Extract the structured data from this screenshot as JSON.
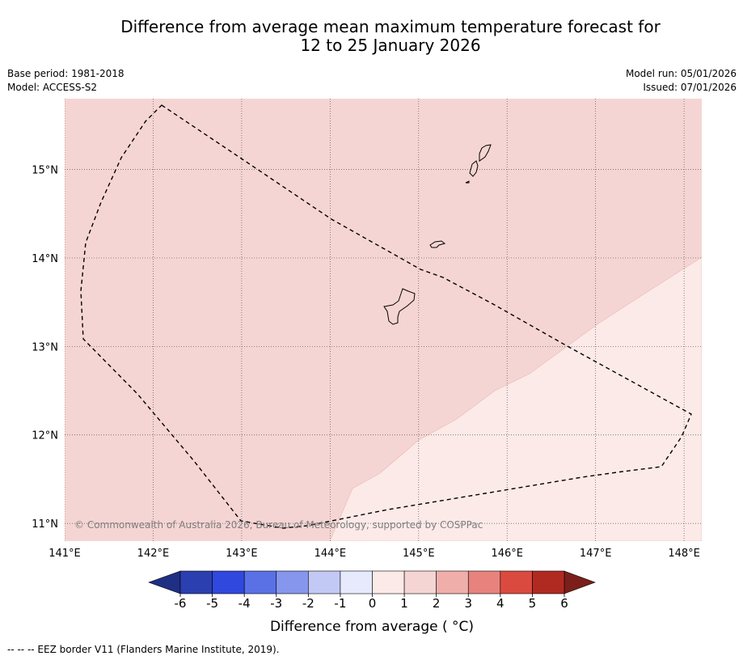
{
  "title": {
    "line1": "Difference from average mean maximum temperature forecast for",
    "line2": "12 to 25 January 2026"
  },
  "meta_left": {
    "base_period": "Base period: 1981-2018",
    "model": "Model: ACCESS-S2"
  },
  "meta_right": {
    "model_run": "Model run: 05/01/2026",
    "issued": "Issued: 07/01/2026"
  },
  "map": {
    "lon_ticks": [
      {
        "value": 141,
        "label": "141°E"
      },
      {
        "value": 142,
        "label": "142°E"
      },
      {
        "value": 143,
        "label": "143°E"
      },
      {
        "value": 144,
        "label": "144°E"
      },
      {
        "value": 145,
        "label": "145°E"
      },
      {
        "value": 146,
        "label": "146°E"
      },
      {
        "value": 147,
        "label": "147°E"
      },
      {
        "value": 148,
        "label": "148°E"
      }
    ],
    "lat_ticks": [
      {
        "value": 15,
        "label": "15°N"
      },
      {
        "value": 14,
        "label": "14°N"
      },
      {
        "value": 13,
        "label": "13°N"
      },
      {
        "value": 12,
        "label": "12°N"
      },
      {
        "value": 11,
        "label": "11°N"
      }
    ],
    "extent": {
      "lon_min": 141.0,
      "lon_max": 148.2,
      "lat_min": 10.8,
      "lat_max": 15.8
    },
    "copyright": "© Commonwealth of Australia 2026, Bureau of Meteorology, supported by COSPPac",
    "anomaly_zones": [
      {
        "name": "1 to 2 °C",
        "color": "#f5d5d3"
      },
      {
        "name": "0 to 1 °C",
        "color": "#fbeae8"
      }
    ]
  },
  "colorbar": {
    "label": "Difference from average ( °C)",
    "ticks": [
      "-6",
      "-5",
      "-4",
      "-3",
      "-2",
      "-1",
      "0",
      "1",
      "2",
      "3",
      "4",
      "5",
      "6"
    ],
    "under_color": "#1f2f84",
    "over_color": "#7a1f1a",
    "colors": [
      "#2b3fb0",
      "#3048de",
      "#5a71e6",
      "#8596ec",
      "#c2c9f5",
      "#e6eafc",
      "#fbeae8",
      "#f5d5d3",
      "#efaeaa",
      "#e7837c",
      "#da4a3f",
      "#b02a22"
    ]
  },
  "footer": {
    "legend": "--  --  -- EEZ border V11 (Flanders Marine Institute, 2019)."
  }
}
